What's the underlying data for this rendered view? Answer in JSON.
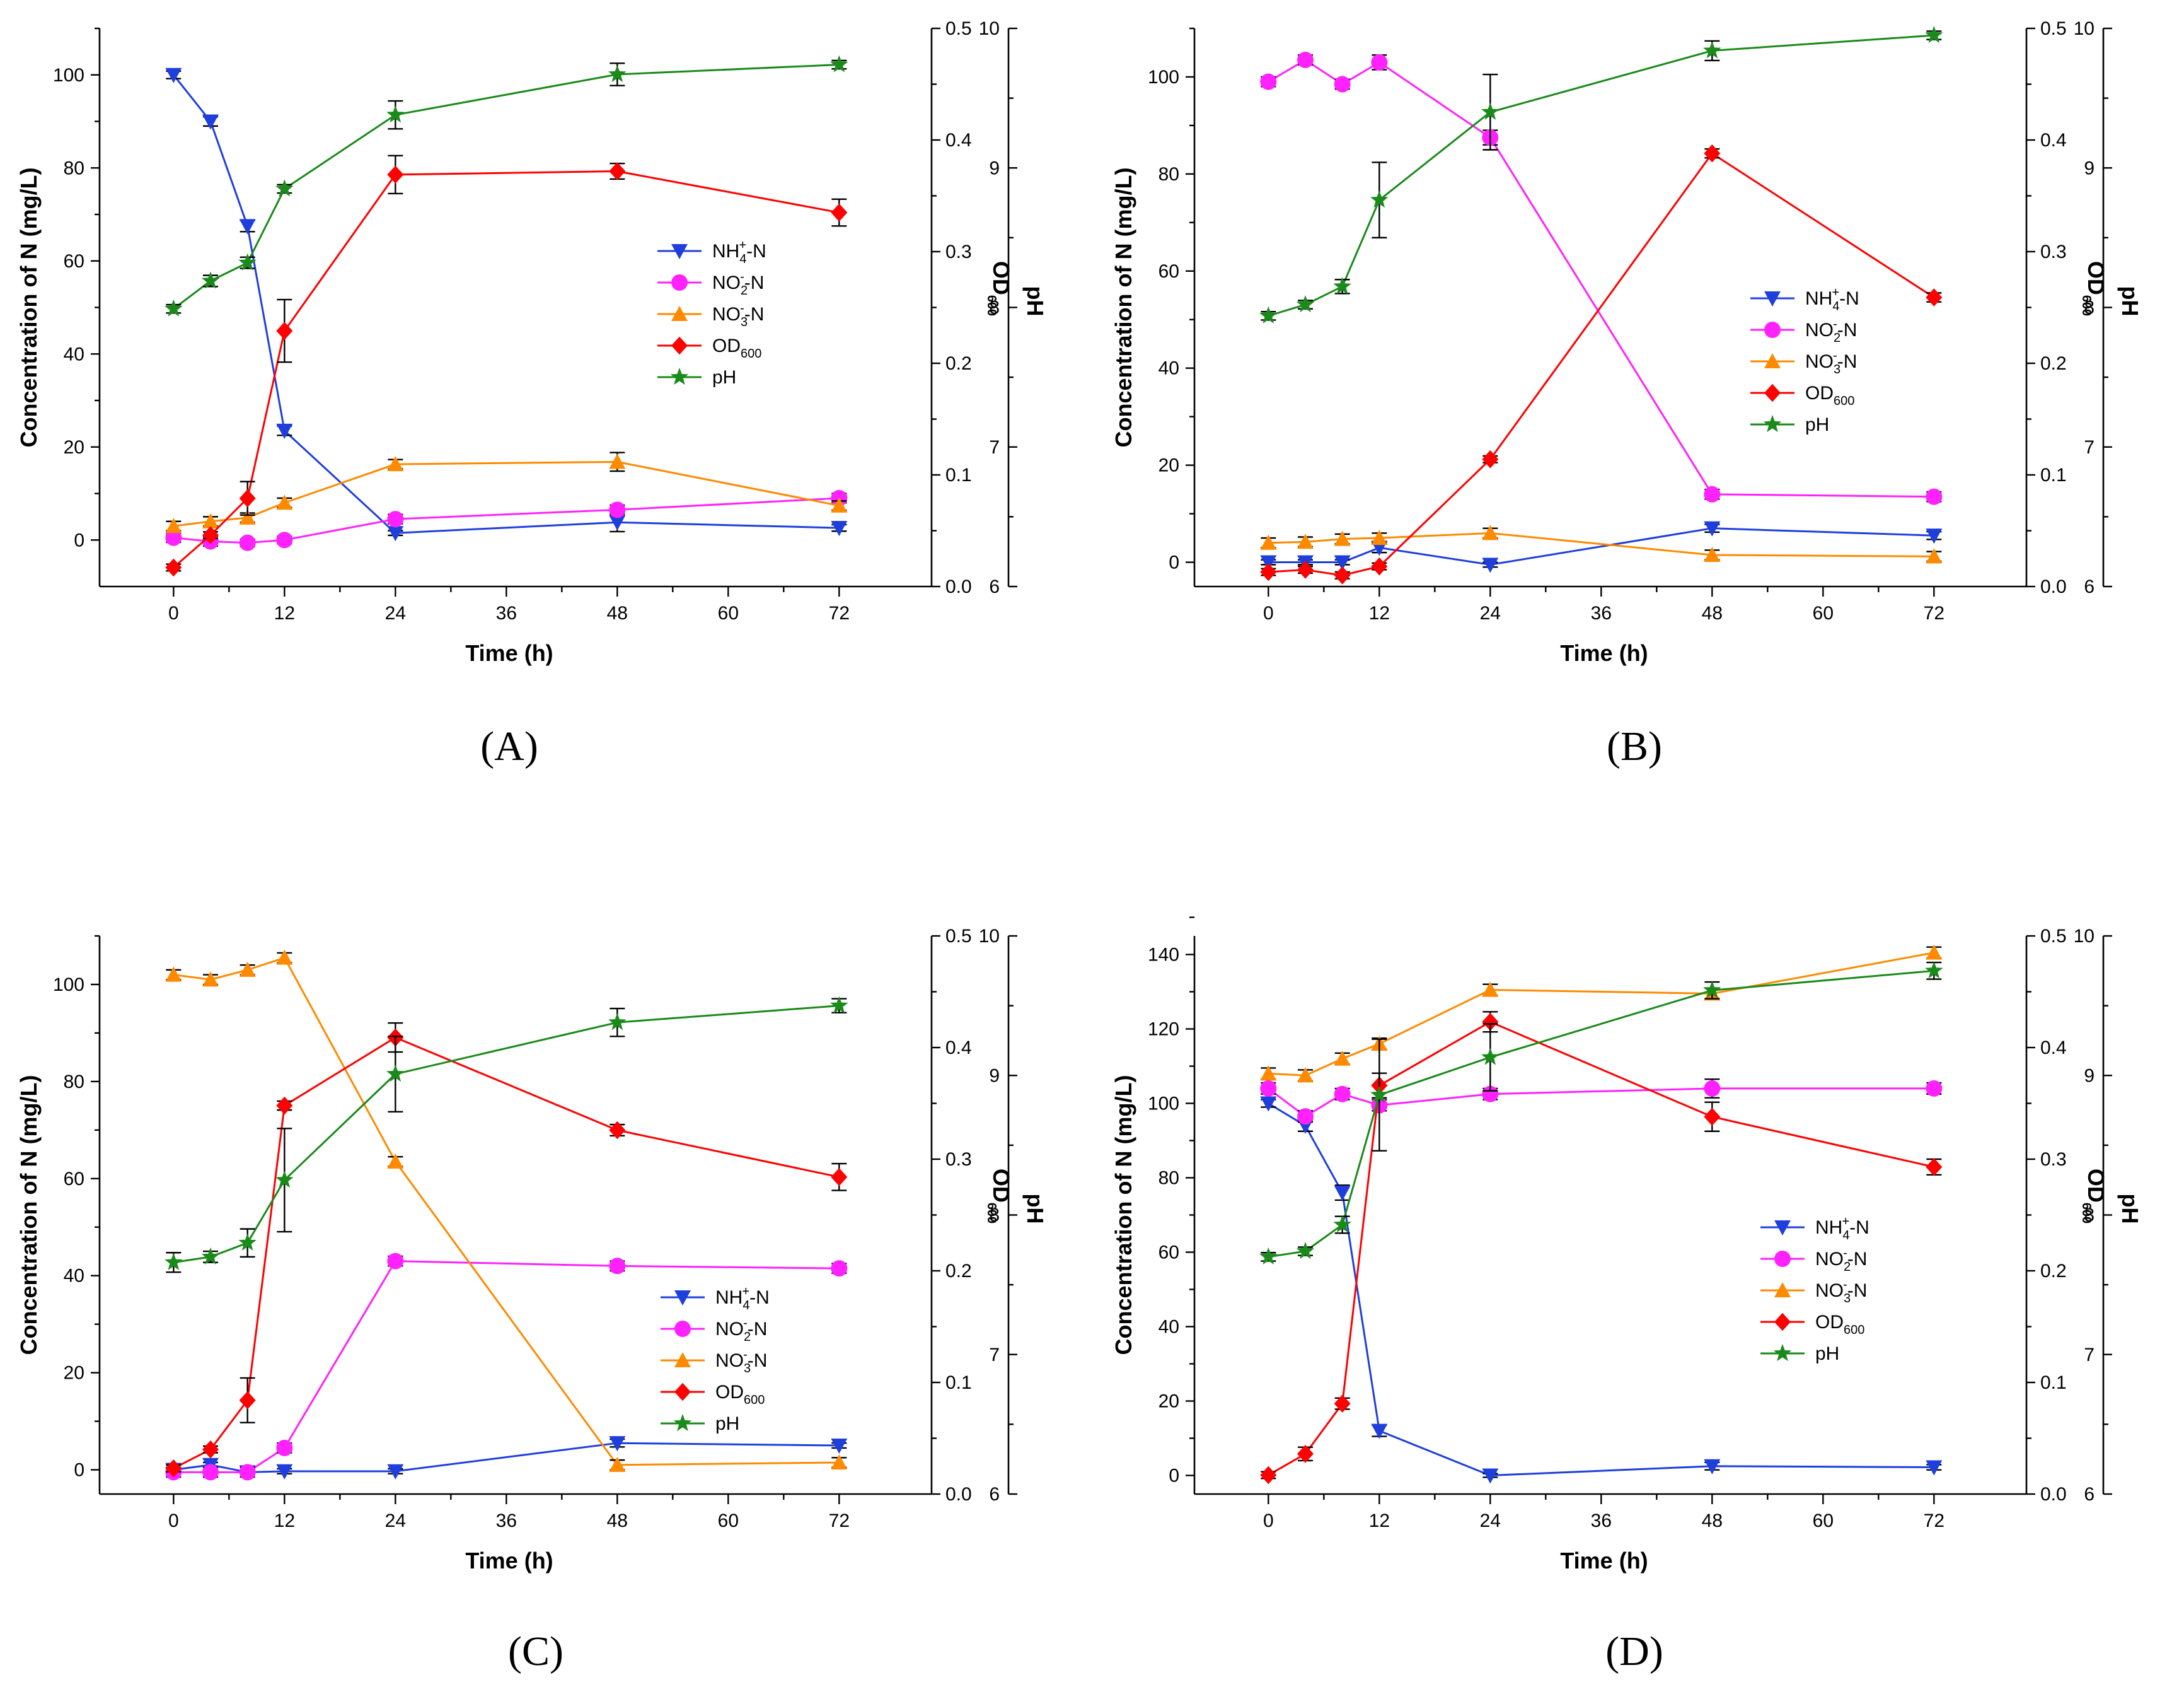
{
  "colors": {
    "nh4": "#1f3fdc",
    "no2": "#ff22ff",
    "no3": "#ff8a00",
    "od": "#ff0000",
    "ph": "#1a8a1a",
    "errorbar": "#000000"
  },
  "chart_data": [
    {
      "type": "line",
      "label": "(A)",
      "xlabel": "Time (h)",
      "ylabel": "Concentration of N (mg/L)",
      "y2label": "OD600",
      "y3label": "pH",
      "x": [
        0,
        4,
        8,
        12,
        24,
        48,
        72
      ],
      "xticks": [
        "0",
        "12",
        "24",
        "36",
        "48",
        "60",
        "72"
      ],
      "ylim": [
        -10,
        110
      ],
      "yticks": [
        "0",
        "20",
        "40",
        "60",
        "80",
        "100"
      ],
      "y2lim": [
        0,
        0.5
      ],
      "y2ticks": [
        "0.0",
        "0.1",
        "0.2",
        "0.3",
        "0.4",
        "0.5"
      ],
      "y3lim": [
        6,
        10
      ],
      "y3ticks": [
        "6",
        "7",
        "8",
        "9",
        "10"
      ],
      "legend": [
        "NH4+-N",
        "NO2--N",
        "NO3--N",
        "OD600",
        "pH"
      ],
      "series": [
        {
          "name": "NH4+-N",
          "axis": "N",
          "values": [
            100,
            90,
            67.5,
            23.5,
            1.5,
            3.8,
            2.6
          ],
          "errors": [
            0.8,
            1,
            1.2,
            1,
            0.5,
            2,
            0.7
          ]
        },
        {
          "name": "NO2--N",
          "axis": "N",
          "values": [
            0.5,
            -0.3,
            -0.6,
            0,
            4.5,
            6.5,
            9
          ],
          "errors": [
            1,
            1,
            0.8,
            0.8,
            1,
            1,
            1
          ]
        },
        {
          "name": "NO3--N",
          "axis": "N",
          "values": [
            3,
            4,
            4.8,
            8,
            16.3,
            16.8,
            7.4
          ],
          "errors": [
            1,
            1,
            1,
            1,
            1,
            2,
            1
          ]
        },
        {
          "name": "OD600",
          "axis": "OD",
          "values": [
            0.017,
            0.046,
            0.079,
            0.229,
            0.369,
            0.372,
            0.335
          ],
          "errors": [
            0.003,
            0.003,
            0.015,
            0.028,
            0.017,
            0.007,
            0.012
          ]
        },
        {
          "name": "pH",
          "axis": "pH",
          "values": [
            7.99,
            8.19,
            8.32,
            8.85,
            9.38,
            9.67,
            9.74
          ],
          "errors": [
            0.03,
            0.04,
            0.04,
            0.03,
            0.1,
            0.08,
            0.03
          ]
        }
      ]
    },
    {
      "type": "line",
      "label": "(B)",
      "xlabel": "Time (h)",
      "ylabel": "Concentration of N (mg/L)",
      "y2label": "OD600",
      "y3label": "pH",
      "x": [
        0,
        4,
        8,
        12,
        24,
        48,
        72
      ],
      "xticks": [
        "0",
        "12",
        "24",
        "36",
        "48",
        "60",
        "72"
      ],
      "ylim": [
        -5,
        110
      ],
      "yticks": [
        "0",
        "20",
        "40",
        "60",
        "80",
        "100"
      ],
      "y2lim": [
        0,
        0.5
      ],
      "y2ticks": [
        "0.0",
        "0.1",
        "0.2",
        "0.3",
        "0.4",
        "0.5"
      ],
      "y3lim": [
        6,
        10
      ],
      "y3ticks": [
        "6",
        "7",
        "8",
        "9",
        "10"
      ],
      "legend": [
        "NH4+-N",
        "NO2--N",
        "NO3--N",
        "OD600",
        "pH"
      ],
      "series": [
        {
          "name": "NH4+-N",
          "axis": "N",
          "values": [
            0,
            0,
            0,
            3,
            -0.5,
            7,
            5.5
          ],
          "errors": [
            0.5,
            0.5,
            0.5,
            1,
            0.5,
            0.8,
            0.8
          ]
        },
        {
          "name": "NO2--N",
          "axis": "N",
          "values": [
            99,
            103.5,
            98.5,
            103,
            87.5,
            14,
            13.5
          ],
          "errors": [
            1,
            1,
            1,
            1.5,
            1.5,
            1,
            1
          ]
        },
        {
          "name": "NO3--N",
          "axis": "N",
          "values": [
            4,
            4.2,
            4.8,
            5,
            6,
            1.5,
            1.2
          ],
          "errors": [
            1,
            1,
            1,
            1,
            1,
            1,
            1
          ]
        },
        {
          "name": "OD600",
          "axis": "OD",
          "values": [
            0.013,
            0.015,
            0.01,
            0.018,
            0.114,
            0.388,
            0.259
          ],
          "errors": [
            0.003,
            0.003,
            0.003,
            0.003,
            0.003,
            0.004,
            0.004
          ]
        },
        {
          "name": "pH",
          "axis": "pH",
          "values": [
            7.94,
            8.02,
            8.15,
            8.77,
            9.4,
            9.84,
            9.95
          ],
          "errors": [
            0.03,
            0.03,
            0.05,
            0.27,
            0.27,
            0.07,
            0.03
          ]
        }
      ]
    },
    {
      "type": "line",
      "label": "(C)",
      "xlabel": "Time (h)",
      "ylabel": "Concentration of N (mg/L)",
      "y2label": "OD600",
      "y3label": "pH",
      "x": [
        0,
        4,
        8,
        12,
        24,
        48,
        72
      ],
      "xticks": [
        "0",
        "12",
        "24",
        "36",
        "48",
        "60",
        "72"
      ],
      "ylim": [
        -5,
        110
      ],
      "yticks": [
        "0",
        "20",
        "40",
        "60",
        "80",
        "100"
      ],
      "y2lim": [
        0,
        0.5
      ],
      "y2ticks": [
        "0.0",
        "0.1",
        "0.2",
        "0.3",
        "0.4",
        "0.5"
      ],
      "y3lim": [
        6,
        10
      ],
      "y3ticks": [
        "6",
        "7",
        "8",
        "9",
        "10"
      ],
      "legend": [
        "NH4+-N",
        "NO2--N",
        "NO3--N",
        "OD600",
        "pH"
      ],
      "series": [
        {
          "name": "NH4+-N",
          "axis": "N",
          "values": [
            0,
            1,
            -0.5,
            -0.3,
            -0.3,
            5.5,
            5
          ],
          "errors": [
            0.5,
            0.5,
            0.5,
            0.5,
            0.5,
            0.8,
            0.5
          ]
        },
        {
          "name": "NO2--N",
          "axis": "N",
          "values": [
            -0.5,
            -0.5,
            -0.5,
            4.5,
            43,
            42,
            41.5
          ],
          "errors": [
            1,
            1,
            1,
            1,
            1,
            1,
            1
          ]
        },
        {
          "name": "NO3--N",
          "axis": "N",
          "values": [
            102,
            101,
            103,
            105.5,
            63.5,
            1,
            1.5
          ],
          "errors": [
            1,
            1,
            1,
            1,
            1,
            1,
            1
          ]
        },
        {
          "name": "OD600",
          "axis": "OD",
          "values": [
            0.023,
            0.04,
            0.084,
            0.348,
            0.409,
            0.326,
            0.284
          ],
          "errors": [
            0.003,
            0.003,
            0.02,
            0.004,
            0.013,
            0.005,
            0.012
          ]
        },
        {
          "name": "pH",
          "axis": "pH",
          "values": [
            7.66,
            7.7,
            7.8,
            8.25,
            9.01,
            9.38,
            9.5
          ],
          "errors": [
            0.07,
            0.04,
            0.1,
            0.37,
            0.27,
            0.1,
            0.05
          ]
        }
      ]
    },
    {
      "type": "line",
      "label": "(D)",
      "xlabel": "Time (h)",
      "ylabel": "Concentration of N (mg/L)",
      "y2label": "OD600",
      "y3label": "pH",
      "x": [
        0,
        4,
        8,
        12,
        24,
        48,
        72
      ],
      "xticks": [
        "0",
        "12",
        "24",
        "36",
        "48",
        "60",
        "72"
      ],
      "ylim": [
        -5,
        145
      ],
      "yticks": [
        "0",
        "20",
        "40",
        "60",
        "80",
        "100",
        "120",
        "140"
      ],
      "y2lim": [
        0,
        0.5
      ],
      "y2ticks": [
        "0.0",
        "0.1",
        "0.2",
        "0.3",
        "0.4",
        "0.5"
      ],
      "y3lim": [
        6,
        10
      ],
      "y3ticks": [
        "6",
        "7",
        "8",
        "9",
        "10"
      ],
      "legend": [
        "NH4+-N",
        "NO2--N",
        "NO3--N",
        "OD600",
        "pH"
      ],
      "series": [
        {
          "name": "NH4+-N",
          "axis": "N",
          "values": [
            100,
            94,
            76,
            12,
            0,
            2.5,
            2.2
          ],
          "errors": [
            1,
            1.5,
            2,
            1.5,
            0.5,
            1,
            0.7
          ]
        },
        {
          "name": "NO2--N",
          "axis": "N",
          "values": [
            104,
            96.5,
            102.5,
            99.5,
            102.5,
            104,
            104
          ],
          "errors": [
            1.5,
            1.5,
            1.5,
            1.5,
            1.5,
            2.5,
            1.5
          ]
        },
        {
          "name": "NO3--N",
          "axis": "N",
          "values": [
            108,
            107.5,
            112,
            116,
            130.5,
            129.5,
            140.5
          ],
          "errors": [
            1.5,
            1.5,
            1.5,
            1.5,
            1.5,
            1.5,
            1.5
          ]
        },
        {
          "name": "OD600",
          "axis": "OD",
          "values": [
            0.017,
            0.036,
            0.081,
            0.366,
            0.423,
            0.338,
            0.293
          ],
          "errors": [
            0.003,
            0.006,
            0.005,
            0.011,
            0.009,
            0.013,
            0.007
          ]
        },
        {
          "name": "pH",
          "axis": "pH",
          "values": [
            7.7,
            7.74,
            7.93,
            8.86,
            9.13,
            9.61,
            9.75
          ],
          "errors": [
            0.03,
            0.03,
            0.06,
            0.4,
            0.24,
            0.06,
            0.06
          ]
        }
      ]
    }
  ]
}
